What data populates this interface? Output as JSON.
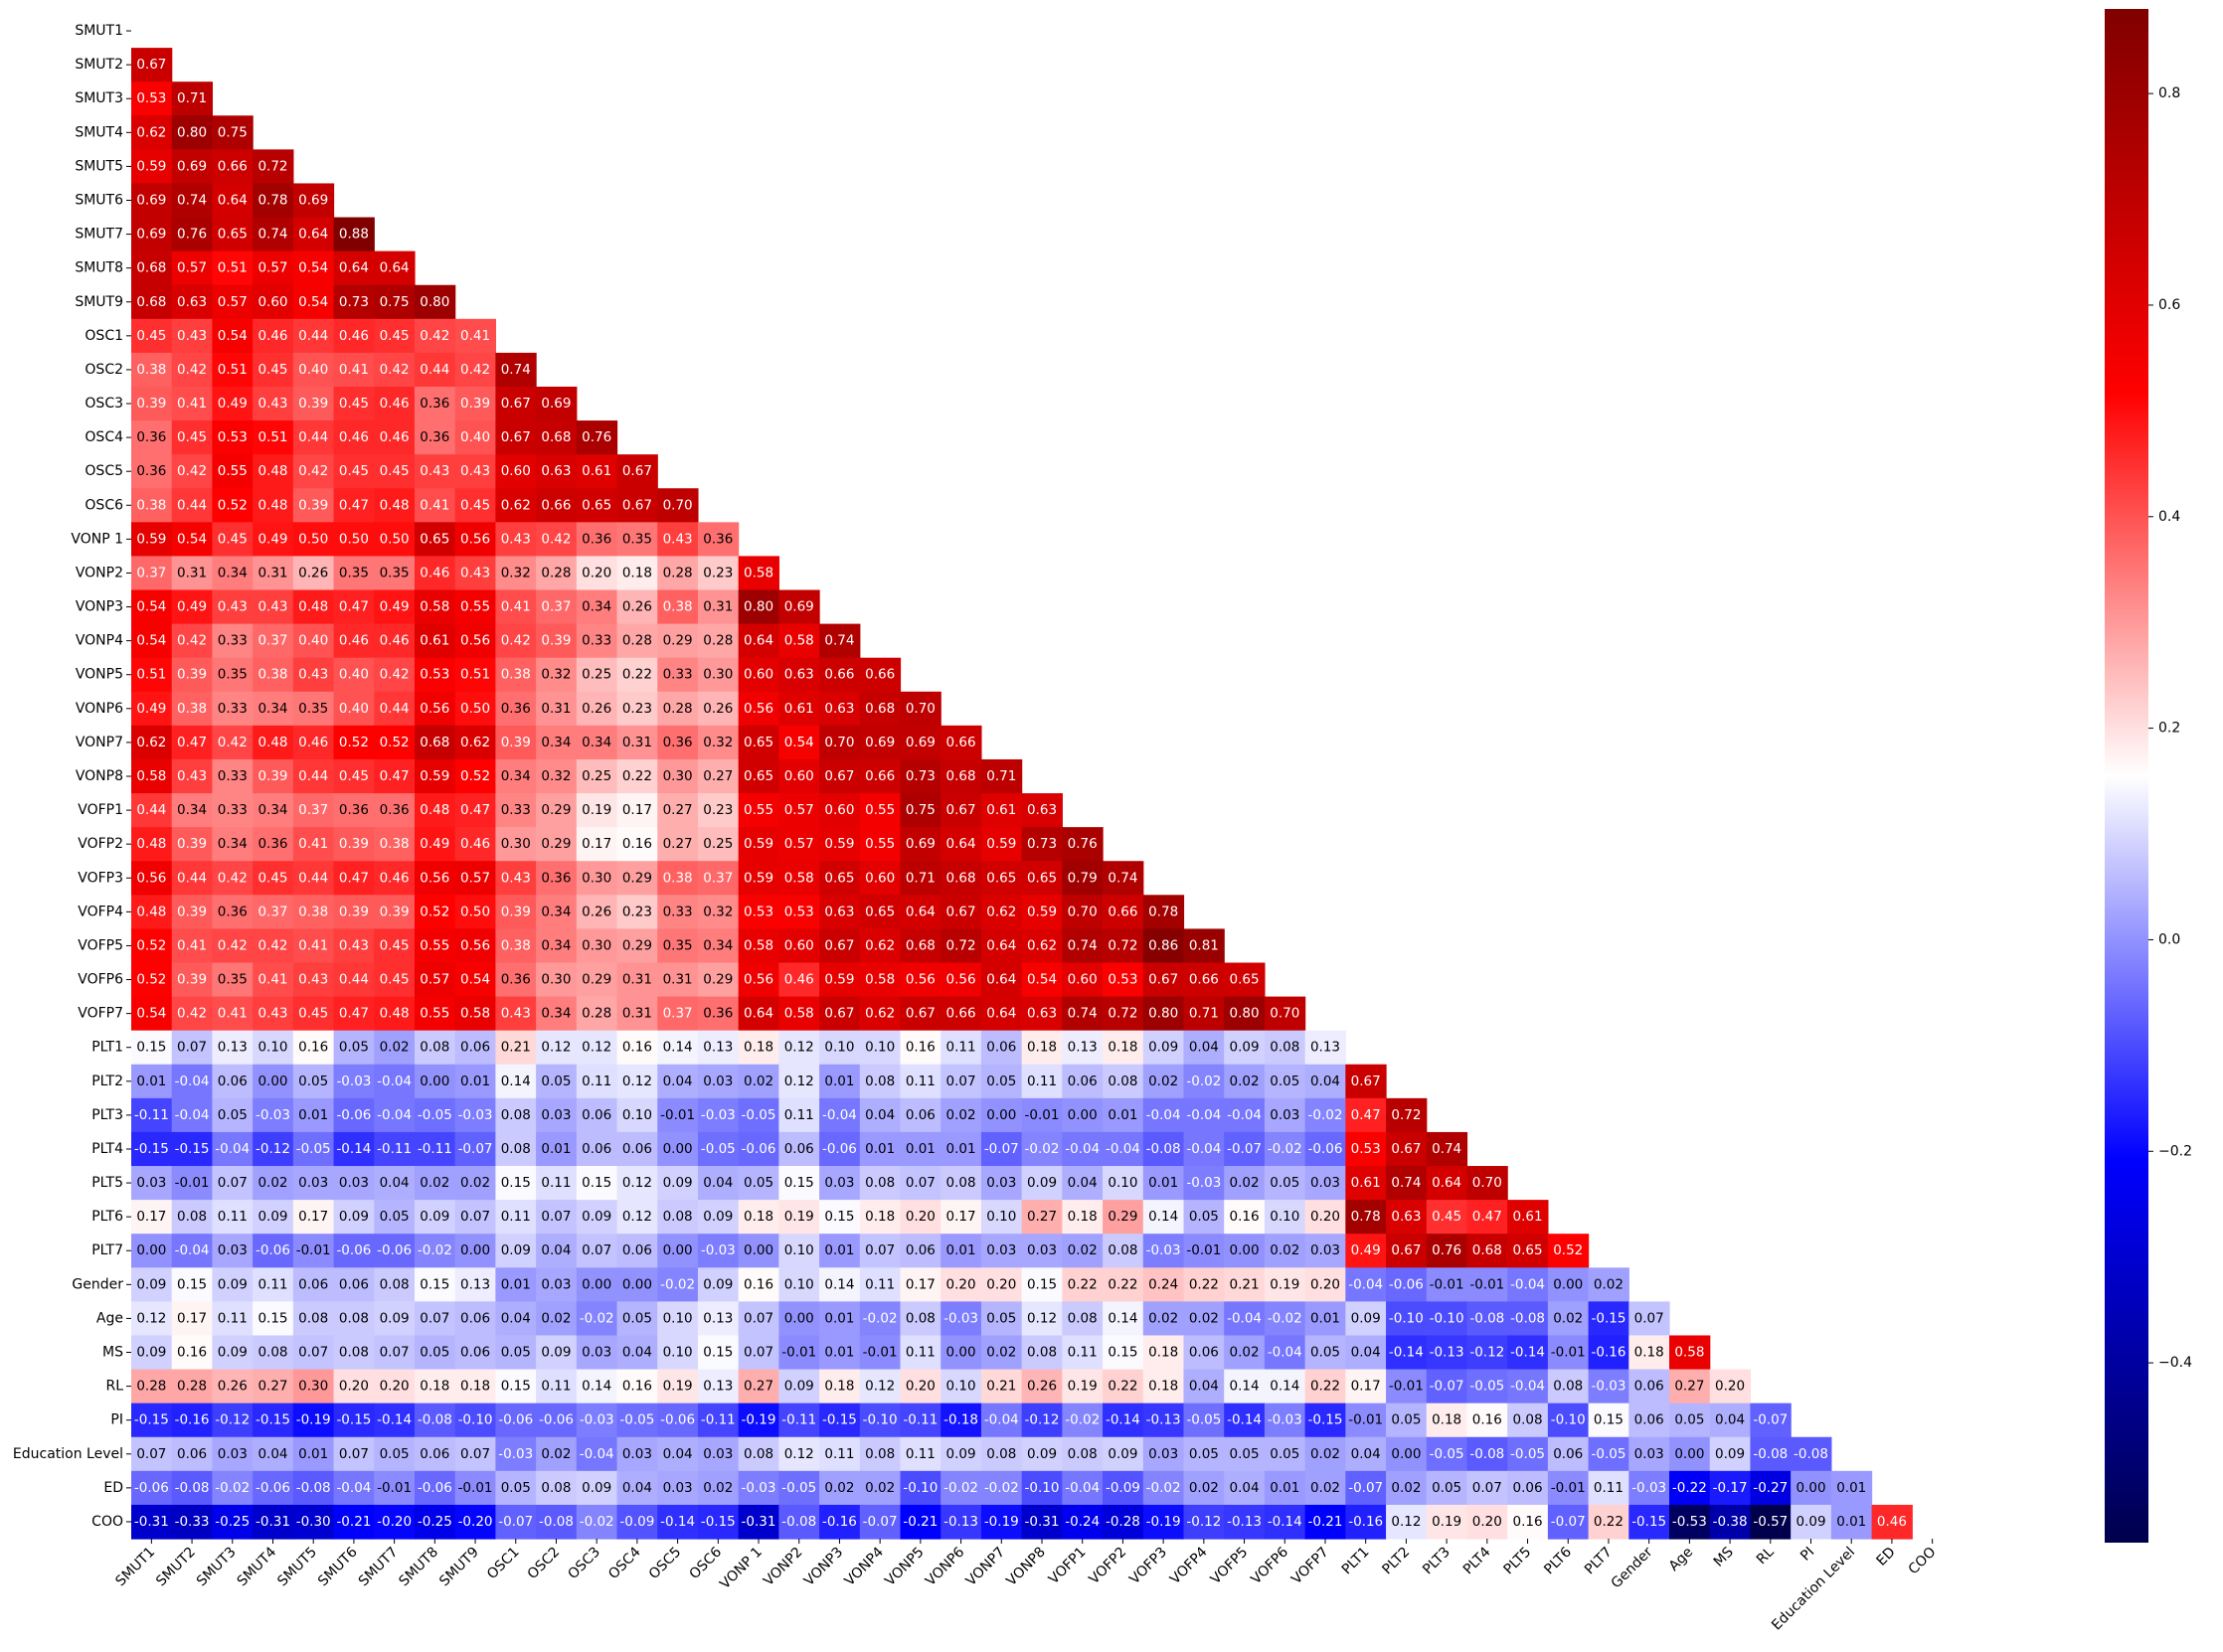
{
  "chart_data": {
    "type": "heatmap",
    "title": "",
    "xlabel": "",
    "ylabel": "",
    "mask": "upper-triangle-including-diagonal",
    "colormap": "seismic",
    "colormap_stops": [
      "#00004c",
      "#0000ff",
      "#ffffff",
      "#ff0000",
      "#800000"
    ],
    "vmin": -0.57,
    "vmax": 0.88,
    "colorbar_ticks": [
      -0.4,
      -0.2,
      0.0,
      0.2,
      0.4,
      0.6,
      0.8
    ],
    "colorbar_tick_labels": [
      "−0.4",
      "−0.2",
      "0.0",
      "0.2",
      "0.4",
      "0.6",
      "0.8"
    ],
    "variables": [
      "SMUT1",
      "SMUT2",
      "SMUT3",
      "SMUT4",
      "SMUT5",
      "SMUT6",
      "SMUT7",
      "SMUT8",
      "SMUT9",
      "OSC1",
      "OSC2",
      "OSC3",
      "OSC4",
      "OSC5",
      "OSC6",
      "VONP 1",
      "VONP2",
      "VONP3",
      "VONP4",
      "VONP5",
      "VONP6",
      "VONP7",
      "VONP8",
      "VOFP1",
      "VOFP2",
      "VOFP3",
      "VOFP4",
      "VOFP5",
      "VOFP6",
      "VOFP7",
      "PLT1",
      "PLT2",
      "PLT3",
      "PLT4",
      "PLT5",
      "PLT6",
      "PLT7",
      "Gender",
      "Age",
      "MS",
      "RL",
      "PI",
      "Education Level",
      "ED",
      "COO"
    ],
    "rows": [
      [],
      [
        0.67
      ],
      [
        0.53,
        0.71
      ],
      [
        0.62,
        0.8,
        0.75
      ],
      [
        0.59,
        0.69,
        0.66,
        0.72
      ],
      [
        0.69,
        0.74,
        0.64,
        0.78,
        0.69
      ],
      [
        0.69,
        0.76,
        0.65,
        0.74,
        0.64,
        0.88
      ],
      [
        0.68,
        0.57,
        0.51,
        0.57,
        0.54,
        0.64,
        0.64
      ],
      [
        0.68,
        0.63,
        0.57,
        0.6,
        0.54,
        0.73,
        0.75,
        0.8
      ],
      [
        0.45,
        0.43,
        0.54,
        0.46,
        0.44,
        0.46,
        0.45,
        0.42,
        0.41
      ],
      [
        0.38,
        0.42,
        0.51,
        0.45,
        0.4,
        0.41,
        0.42,
        0.44,
        0.42,
        0.74
      ],
      [
        0.39,
        0.41,
        0.49,
        0.43,
        0.39,
        0.45,
        0.46,
        0.36,
        0.39,
        0.67,
        0.69
      ],
      [
        0.36,
        0.45,
        0.53,
        0.51,
        0.44,
        0.46,
        0.46,
        0.36,
        0.4,
        0.67,
        0.68,
        0.76
      ],
      [
        0.36,
        0.42,
        0.55,
        0.48,
        0.42,
        0.45,
        0.45,
        0.43,
        0.43,
        0.6,
        0.63,
        0.61,
        0.67
      ],
      [
        0.38,
        0.44,
        0.52,
        0.48,
        0.39,
        0.47,
        0.48,
        0.41,
        0.45,
        0.62,
        0.66,
        0.65,
        0.67,
        0.7
      ],
      [
        0.59,
        0.54,
        0.45,
        0.49,
        0.5,
        0.5,
        0.5,
        0.65,
        0.56,
        0.43,
        0.42,
        0.36,
        0.35,
        0.43,
        0.36
      ],
      [
        0.37,
        0.31,
        0.34,
        0.31,
        0.26,
        0.35,
        0.35,
        0.46,
        0.43,
        0.32,
        0.28,
        0.2,
        0.18,
        0.28,
        0.23,
        0.58
      ],
      [
        0.54,
        0.49,
        0.43,
        0.43,
        0.48,
        0.47,
        0.49,
        0.58,
        0.55,
        0.41,
        0.37,
        0.34,
        0.26,
        0.38,
        0.31,
        0.8,
        0.69
      ],
      [
        0.54,
        0.42,
        0.33,
        0.37,
        0.4,
        0.46,
        0.46,
        0.61,
        0.56,
        0.42,
        0.39,
        0.33,
        0.28,
        0.29,
        0.28,
        0.64,
        0.58,
        0.74
      ],
      [
        0.51,
        0.39,
        0.35,
        0.38,
        0.43,
        0.4,
        0.42,
        0.53,
        0.51,
        0.38,
        0.32,
        0.25,
        0.22,
        0.33,
        0.3,
        0.6,
        0.63,
        0.66,
        0.66
      ],
      [
        0.49,
        0.38,
        0.33,
        0.34,
        0.35,
        0.4,
        0.44,
        0.56,
        0.5,
        0.36,
        0.31,
        0.26,
        0.23,
        0.28,
        0.26,
        0.56,
        0.61,
        0.63,
        0.68,
        0.7
      ],
      [
        0.62,
        0.47,
        0.42,
        0.48,
        0.46,
        0.52,
        0.52,
        0.68,
        0.62,
        0.39,
        0.34,
        0.34,
        0.31,
        0.36,
        0.32,
        0.65,
        0.54,
        0.7,
        0.69,
        0.69,
        0.66
      ],
      [
        0.58,
        0.43,
        0.33,
        0.39,
        0.44,
        0.45,
        0.47,
        0.59,
        0.52,
        0.34,
        0.32,
        0.25,
        0.22,
        0.3,
        0.27,
        0.65,
        0.6,
        0.67,
        0.66,
        0.73,
        0.68,
        0.71
      ],
      [
        0.44,
        0.34,
        0.33,
        0.34,
        0.37,
        0.36,
        0.36,
        0.48,
        0.47,
        0.33,
        0.29,
        0.19,
        0.17,
        0.27,
        0.23,
        0.55,
        0.57,
        0.6,
        0.55,
        0.75,
        0.67,
        0.61,
        0.63
      ],
      [
        0.48,
        0.39,
        0.34,
        0.36,
        0.41,
        0.39,
        0.38,
        0.49,
        0.46,
        0.3,
        0.29,
        0.17,
        0.16,
        0.27,
        0.25,
        0.59,
        0.57,
        0.59,
        0.55,
        0.69,
        0.64,
        0.59,
        0.73,
        0.76
      ],
      [
        0.56,
        0.44,
        0.42,
        0.45,
        0.44,
        0.47,
        0.46,
        0.56,
        0.57,
        0.43,
        0.36,
        0.3,
        0.29,
        0.38,
        0.37,
        0.59,
        0.58,
        0.65,
        0.6,
        0.71,
        0.68,
        0.65,
        0.65,
        0.79,
        0.74
      ],
      [
        0.48,
        0.39,
        0.36,
        0.37,
        0.38,
        0.39,
        0.39,
        0.52,
        0.5,
        0.39,
        0.34,
        0.26,
        0.23,
        0.33,
        0.32,
        0.53,
        0.53,
        0.63,
        0.65,
        0.64,
        0.67,
        0.62,
        0.59,
        0.7,
        0.66,
        0.78
      ],
      [
        0.52,
        0.41,
        0.42,
        0.42,
        0.41,
        0.43,
        0.45,
        0.55,
        0.56,
        0.38,
        0.34,
        0.3,
        0.29,
        0.35,
        0.34,
        0.58,
        0.6,
        0.67,
        0.62,
        0.68,
        0.72,
        0.64,
        0.62,
        0.74,
        0.72,
        0.86,
        0.81
      ],
      [
        0.52,
        0.39,
        0.35,
        0.41,
        0.43,
        0.44,
        0.45,
        0.57,
        0.54,
        0.36,
        0.3,
        0.29,
        0.31,
        0.31,
        0.29,
        0.56,
        0.46,
        0.59,
        0.58,
        0.56,
        0.56,
        0.64,
        0.54,
        0.6,
        0.53,
        0.67,
        0.66,
        0.65
      ],
      [
        0.54,
        0.42,
        0.41,
        0.43,
        0.45,
        0.47,
        0.48,
        0.55,
        0.58,
        0.43,
        0.34,
        0.28,
        0.31,
        0.37,
        0.36,
        0.64,
        0.58,
        0.67,
        0.62,
        0.67,
        0.66,
        0.64,
        0.63,
        0.74,
        0.72,
        0.8,
        0.71,
        0.8,
        0.7
      ],
      [
        0.15,
        0.07,
        0.13,
        0.1,
        0.16,
        0.05,
        0.02,
        0.08,
        0.06,
        0.21,
        0.12,
        0.12,
        0.16,
        0.14,
        0.13,
        0.18,
        0.12,
        0.1,
        0.1,
        0.16,
        0.11,
        0.06,
        0.18,
        0.13,
        0.18,
        0.09,
        0.04,
        0.09,
        0.08,
        0.13
      ],
      [
        0.01,
        -0.04,
        0.06,
        -0.0,
        0.05,
        -0.03,
        -0.04,
        0.0,
        0.01,
        0.14,
        0.05,
        0.11,
        0.12,
        0.04,
        0.03,
        0.02,
        0.12,
        0.01,
        0.08,
        0.11,
        0.07,
        0.05,
        0.11,
        0.06,
        0.08,
        0.02,
        -0.02,
        0.02,
        0.05,
        0.04,
        0.67
      ],
      [
        -0.11,
        -0.04,
        0.05,
        -0.03,
        0.01,
        -0.06,
        -0.04,
        -0.05,
        -0.03,
        0.08,
        0.03,
        0.06,
        0.1,
        -0.01,
        -0.03,
        -0.05,
        0.11,
        -0.04,
        0.04,
        0.06,
        0.02,
        -0.0,
        -0.01,
        0.0,
        0.01,
        -0.04,
        -0.04,
        -0.04,
        0.03,
        -0.02,
        0.47,
        0.72
      ],
      [
        -0.15,
        -0.15,
        -0.04,
        -0.12,
        -0.05,
        -0.14,
        -0.11,
        -0.11,
        -0.07,
        0.08,
        0.01,
        0.06,
        0.06,
        0.0,
        -0.05,
        -0.06,
        0.06,
        -0.06,
        0.01,
        0.01,
        0.01,
        -0.07,
        -0.02,
        -0.04,
        -0.04,
        -0.08,
        -0.04,
        -0.07,
        -0.02,
        -0.06,
        0.53,
        0.67,
        0.74
      ],
      [
        0.03,
        -0.01,
        0.07,
        0.02,
        0.03,
        0.03,
        0.04,
        0.02,
        0.02,
        0.15,
        0.11,
        0.15,
        0.12,
        0.09,
        0.04,
        0.05,
        0.15,
        0.03,
        0.08,
        0.07,
        0.08,
        0.03,
        0.09,
        0.04,
        0.1,
        0.01,
        -0.03,
        0.02,
        0.05,
        0.03,
        0.61,
        0.74,
        0.64,
        0.7
      ],
      [
        0.17,
        0.08,
        0.11,
        0.09,
        0.17,
        0.09,
        0.05,
        0.09,
        0.07,
        0.11,
        0.07,
        0.09,
        0.12,
        0.08,
        0.09,
        0.18,
        0.19,
        0.15,
        0.18,
        0.2,
        0.17,
        0.1,
        0.27,
        0.18,
        0.29,
        0.14,
        0.05,
        0.16,
        0.1,
        0.2,
        0.78,
        0.63,
        0.45,
        0.47,
        0.61
      ],
      [
        0.0,
        -0.04,
        0.03,
        -0.06,
        -0.01,
        -0.06,
        -0.06,
        -0.02,
        0.0,
        0.09,
        0.04,
        0.07,
        0.06,
        0.0,
        -0.03,
        0.0,
        0.1,
        0.01,
        0.07,
        0.06,
        0.01,
        0.03,
        0.03,
        0.02,
        0.08,
        -0.03,
        -0.01,
        -0.0,
        0.02,
        0.03,
        0.49,
        0.67,
        0.76,
        0.68,
        0.65,
        0.52
      ],
      [
        0.09,
        0.15,
        0.09,
        0.11,
        0.06,
        0.06,
        0.08,
        0.15,
        0.13,
        0.01,
        0.03,
        -0.0,
        0.0,
        -0.02,
        0.09,
        0.16,
        0.1,
        0.14,
        0.11,
        0.17,
        0.2,
        0.2,
        0.15,
        0.22,
        0.22,
        0.24,
        0.22,
        0.21,
        0.19,
        0.2,
        -0.04,
        -0.06,
        -0.01,
        -0.01,
        -0.04,
        -0.0,
        0.02
      ],
      [
        0.12,
        0.17,
        0.11,
        0.15,
        0.08,
        0.08,
        0.09,
        0.07,
        0.06,
        0.04,
        0.02,
        -0.02,
        0.05,
        0.1,
        0.13,
        0.07,
        -0.0,
        0.01,
        -0.02,
        0.08,
        -0.03,
        0.05,
        0.12,
        0.08,
        0.14,
        0.02,
        0.02,
        -0.04,
        -0.02,
        0.01,
        0.09,
        -0.1,
        -0.1,
        -0.08,
        -0.08,
        0.02,
        -0.15,
        0.07
      ],
      [
        0.09,
        0.16,
        0.09,
        0.08,
        0.07,
        0.08,
        0.07,
        0.05,
        0.06,
        0.05,
        0.09,
        0.03,
        0.04,
        0.1,
        0.15,
        0.07,
        -0.01,
        0.01,
        -0.01,
        0.11,
        0.0,
        0.02,
        0.08,
        0.11,
        0.15,
        0.18,
        0.06,
        0.02,
        -0.04,
        0.05,
        0.04,
        -0.14,
        -0.13,
        -0.12,
        -0.14,
        -0.01,
        -0.16,
        0.18,
        0.58
      ],
      [
        0.28,
        0.28,
        0.26,
        0.27,
        0.3,
        0.2,
        0.2,
        0.18,
        0.18,
        0.15,
        0.11,
        0.14,
        0.16,
        0.19,
        0.13,
        0.27,
        0.09,
        0.18,
        0.12,
        0.2,
        0.1,
        0.21,
        0.26,
        0.19,
        0.22,
        0.18,
        0.04,
        0.14,
        0.14,
        0.22,
        0.17,
        -0.01,
        -0.07,
        -0.05,
        -0.04,
        0.08,
        -0.03,
        0.06,
        0.27,
        0.2
      ],
      [
        -0.15,
        -0.16,
        -0.12,
        -0.15,
        -0.19,
        -0.15,
        -0.14,
        -0.08,
        -0.1,
        -0.06,
        -0.06,
        -0.03,
        -0.05,
        -0.06,
        -0.11,
        -0.19,
        -0.11,
        -0.15,
        -0.1,
        -0.11,
        -0.18,
        -0.04,
        -0.12,
        -0.02,
        -0.14,
        -0.13,
        -0.05,
        -0.14,
        -0.03,
        -0.15,
        -0.01,
        0.05,
        0.18,
        0.16,
        0.08,
        -0.1,
        0.15,
        0.06,
        0.05,
        0.04,
        -0.07
      ],
      [
        0.07,
        0.06,
        0.03,
        0.04,
        0.01,
        0.07,
        0.05,
        0.06,
        0.07,
        -0.03,
        0.02,
        -0.04,
        0.03,
        0.04,
        0.03,
        0.08,
        0.12,
        0.11,
        0.08,
        0.11,
        0.09,
        0.08,
        0.09,
        0.08,
        0.09,
        0.03,
        0.05,
        0.05,
        0.05,
        0.02,
        0.04,
        0.0,
        -0.05,
        -0.08,
        -0.05,
        0.06,
        -0.05,
        0.03,
        -0.0,
        0.09,
        -0.08,
        -0.08
      ],
      [
        -0.06,
        -0.08,
        -0.02,
        -0.06,
        -0.08,
        -0.04,
        -0.01,
        -0.06,
        -0.01,
        0.05,
        0.08,
        0.09,
        0.04,
        0.03,
        0.02,
        -0.03,
        -0.05,
        0.02,
        0.02,
        -0.1,
        -0.02,
        -0.02,
        -0.1,
        -0.04,
        -0.09,
        -0.02,
        0.02,
        0.04,
        0.01,
        0.02,
        -0.07,
        0.02,
        0.05,
        0.07,
        0.06,
        -0.01,
        0.11,
        -0.03,
        -0.22,
        -0.17,
        -0.27,
        -0.0,
        0.01
      ],
      [
        -0.31,
        -0.33,
        -0.25,
        -0.31,
        -0.3,
        -0.21,
        -0.2,
        -0.25,
        -0.2,
        -0.07,
        -0.08,
        -0.02,
        -0.09,
        -0.14,
        -0.15,
        -0.31,
        -0.08,
        -0.16,
        -0.07,
        -0.21,
        -0.13,
        -0.19,
        -0.31,
        -0.24,
        -0.28,
        -0.19,
        -0.12,
        -0.13,
        -0.14,
        -0.21,
        -0.16,
        0.12,
        0.19,
        0.2,
        0.16,
        -0.07,
        0.22,
        -0.15,
        -0.53,
        -0.38,
        -0.57,
        0.09,
        0.01,
        0.46
      ]
    ]
  }
}
